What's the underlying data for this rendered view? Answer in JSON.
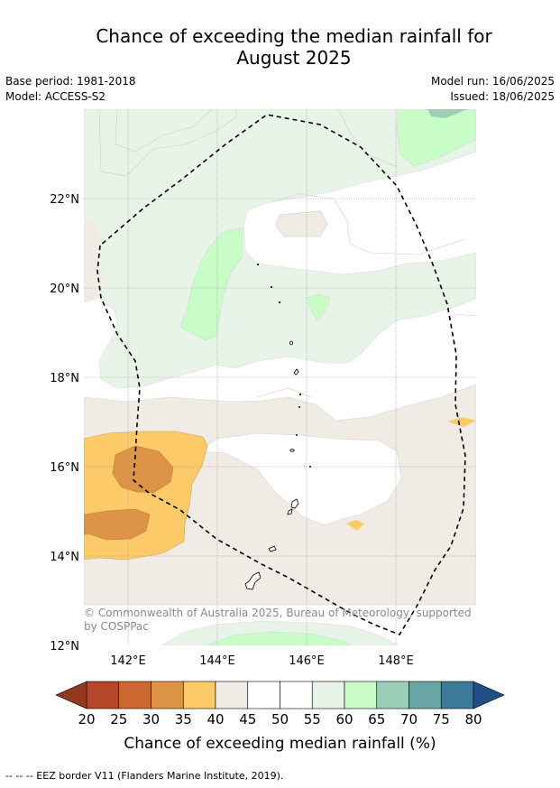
{
  "title_line1": "Chance of exceeding the median rainfall for",
  "title_line2": "August 2025",
  "base_period": "Base period: 1981-2018",
  "model": "Model: ACCESS-S2",
  "model_run": "Model run: 16/06/2025",
  "issued": "Issued: 18/06/2025",
  "credit": "© Commonwealth of Australia 2025, Bureau of Meteorology, supported by COSPPac",
  "lat_labels": [
    "22°N",
    "20°N",
    "18°N",
    "16°N",
    "14°N",
    "12°N"
  ],
  "lat_values": [
    22,
    20,
    18,
    16,
    14,
    12
  ],
  "lon_labels": [
    "142°E",
    "144°E",
    "146°E",
    "148°E"
  ],
  "lon_values": [
    142,
    144,
    146,
    148
  ],
  "colorbar": {
    "title": "Chance of exceeding median rainfall (%)",
    "ticks": [
      "20",
      "25",
      "30",
      "35",
      "40",
      "45",
      "50",
      "55",
      "60",
      "65",
      "70",
      "75",
      "80"
    ],
    "colors": [
      "#b34728",
      "#cc6832",
      "#de9446",
      "#fdca6a",
      "#f0ebe5",
      "#ffffff",
      "#ffffff",
      "#e8f4e8",
      "#c8fdc8",
      "#9bcfb8",
      "#6aa5a5",
      "#3d7a99"
    ],
    "under_color": "#943920",
    "over_color": "#1f4f86"
  },
  "footnote": "--  --  -- EEZ border V11 (Flanders Marine Institute, 2019)."
}
